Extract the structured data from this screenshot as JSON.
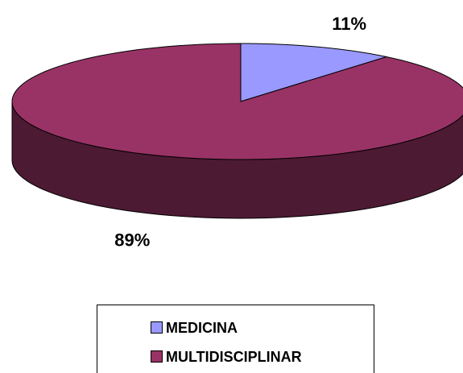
{
  "chart_data": {
    "type": "pie3d",
    "categories": [
      "MEDICINA",
      "MULTIDISCIPLINAR"
    ],
    "values": [
      11,
      89
    ],
    "value_labels": [
      "11%",
      "89%"
    ],
    "colors": [
      "#9999ff",
      "#993366"
    ],
    "legend": "bottom"
  }
}
